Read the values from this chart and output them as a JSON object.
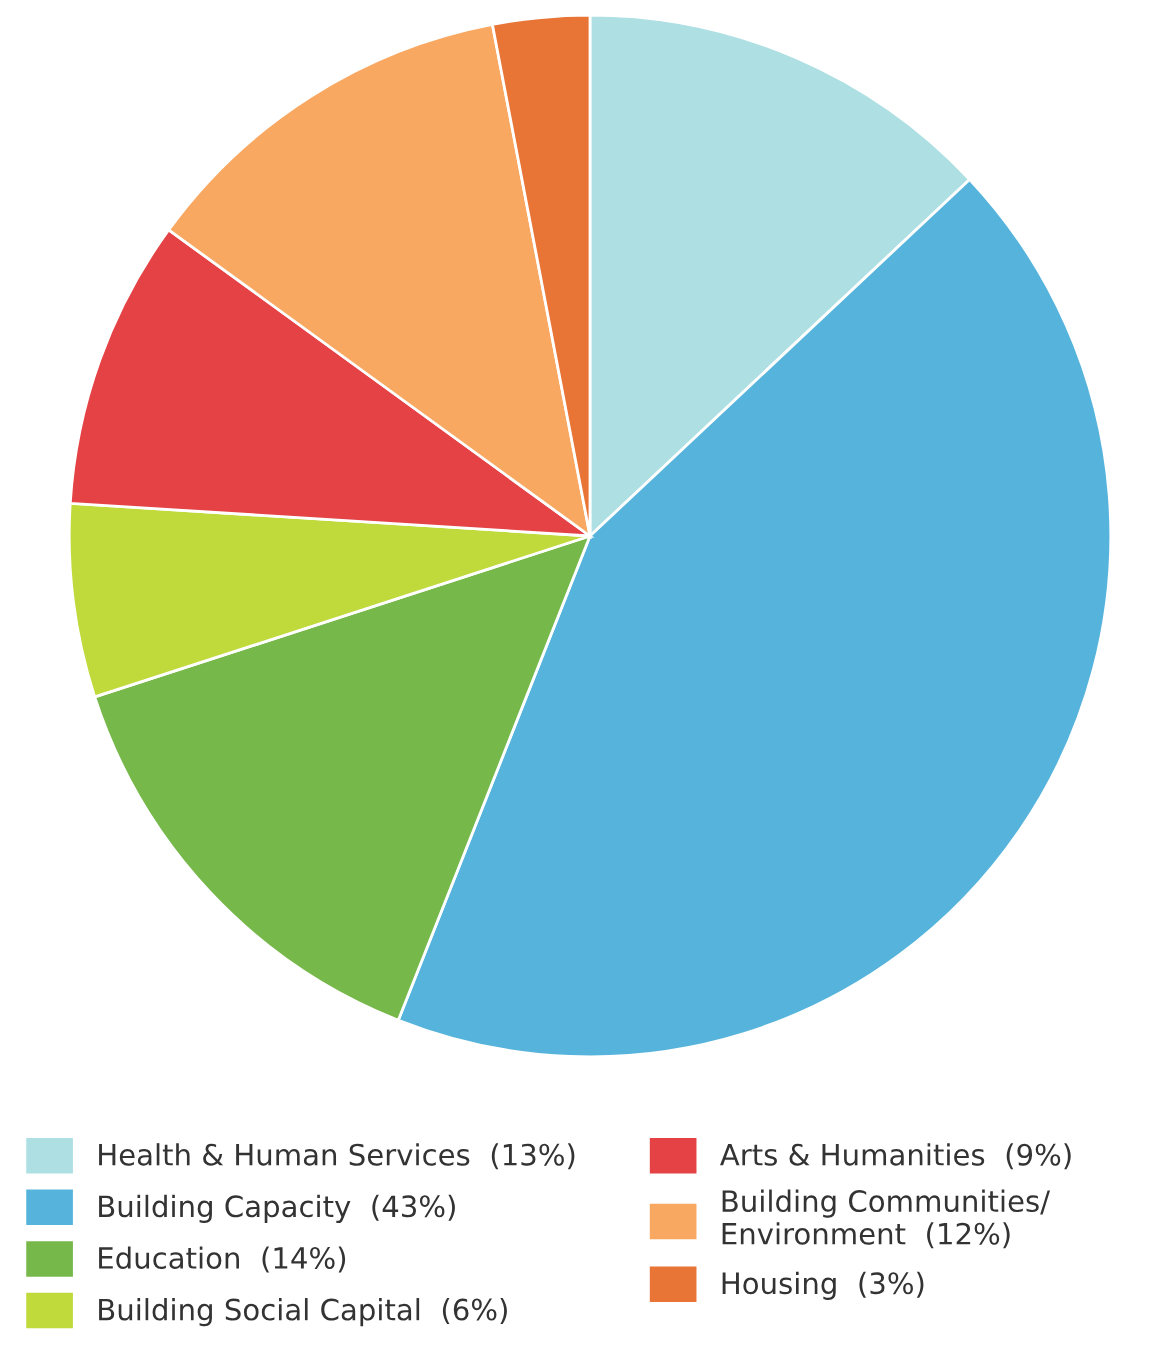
{
  "chart_data": {
    "type": "pie",
    "categories": [
      "Health & Human Services",
      "Building Capacity",
      "Education",
      "Building Social Capital",
      "Arts & Humanities",
      "Building Communities/\nEnvironment",
      "Housing"
    ],
    "values": [
      13,
      43,
      14,
      6,
      9,
      12,
      3
    ],
    "value_labels": [
      "(13%)",
      "(43%)",
      "(14%)",
      "(6%)",
      "(9%)",
      "(12%)",
      "(3%)"
    ],
    "colors": [
      "#addfe3",
      "#56b4dc",
      "#76b84a",
      "#c0d93b",
      "#e54245",
      "#f9a862",
      "#e87436"
    ],
    "legend": "bottom"
  }
}
